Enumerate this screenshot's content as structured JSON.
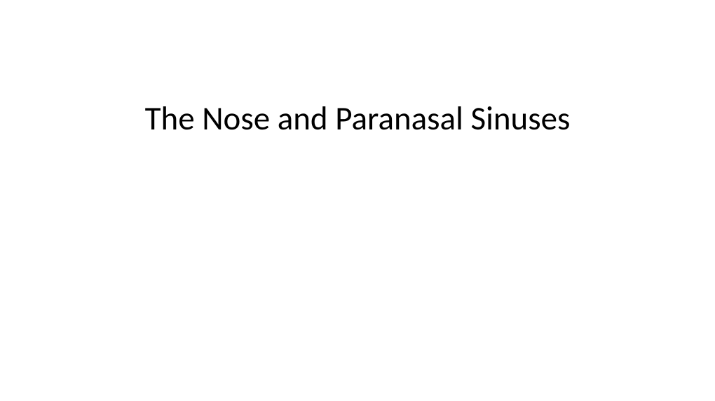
{
  "slide": {
    "title": "The Nose and Paranasal Sinuses",
    "title_fontsize": 47,
    "title_color": "#000000",
    "background_color": "#ffffff",
    "title_font_family": "Calibri"
  }
}
